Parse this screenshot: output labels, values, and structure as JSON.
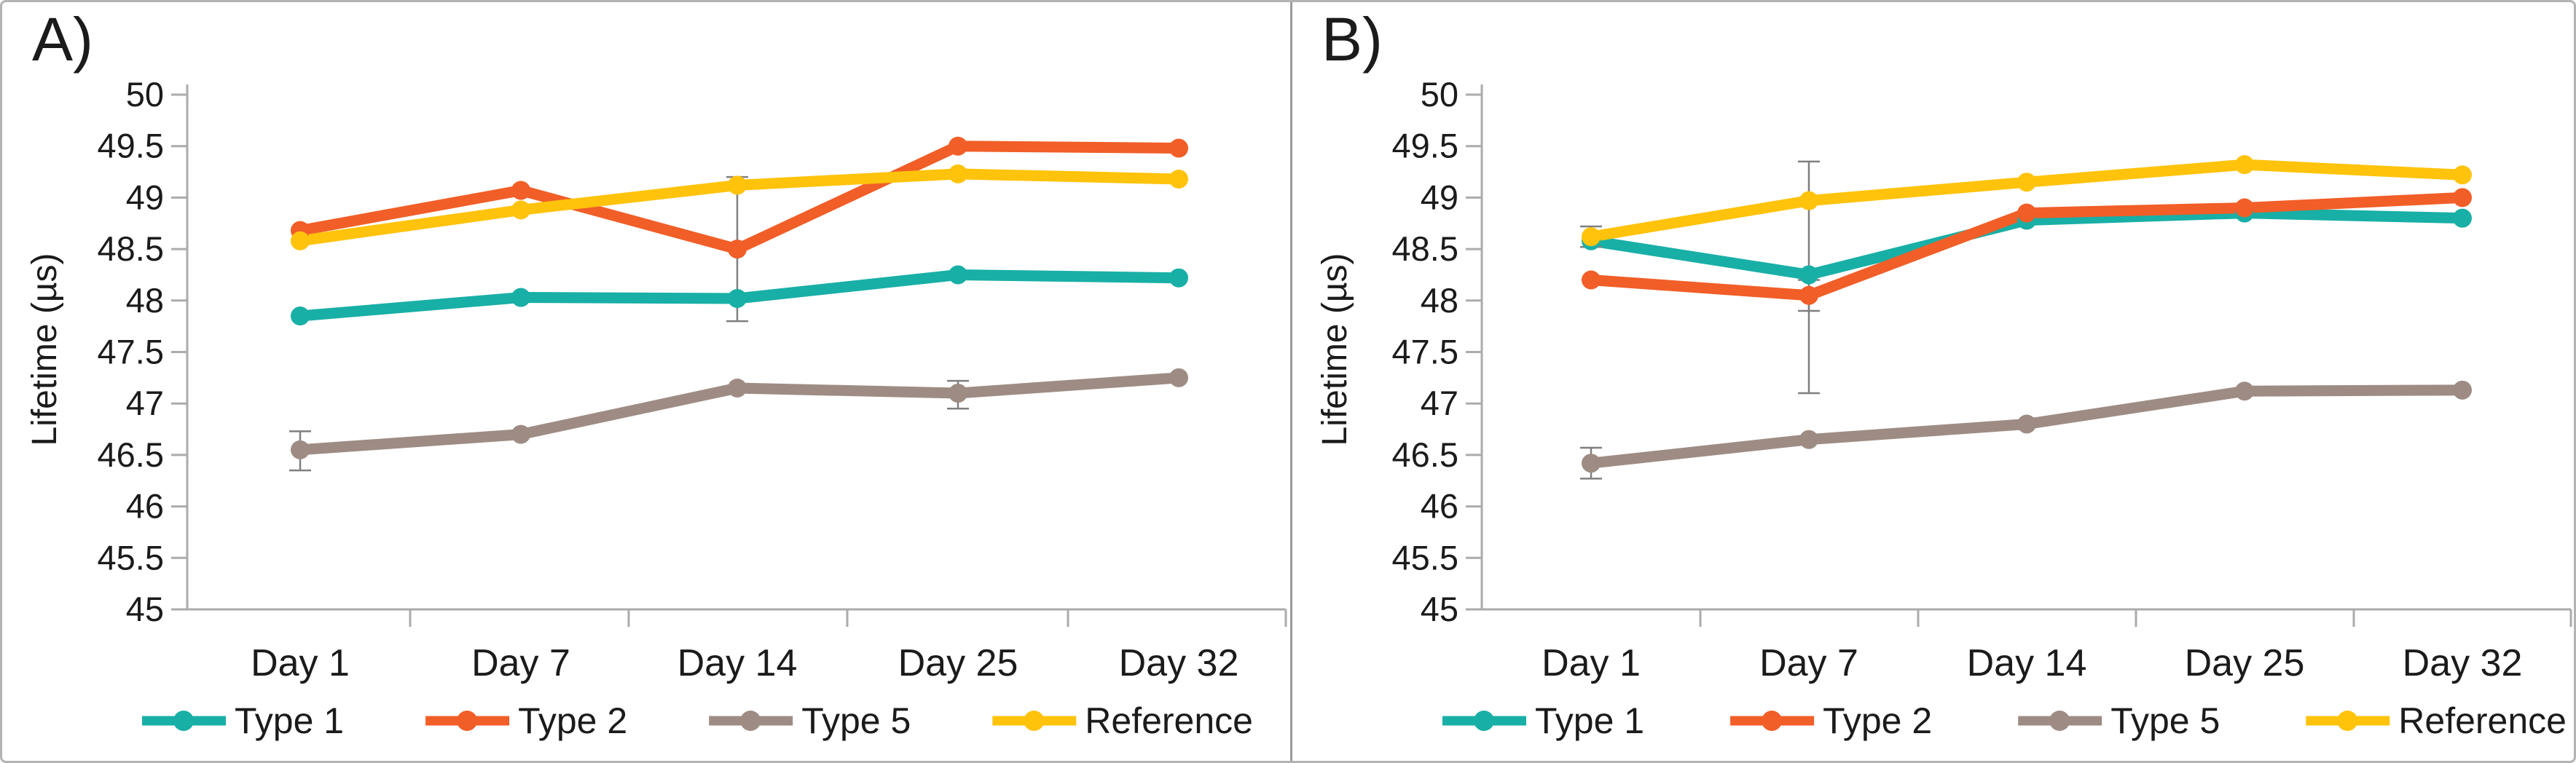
{
  "figure": {
    "background": "#ffffff",
    "border_color": "#b3b3b3",
    "divider_color": "#9b9b9b",
    "text_color": "#1b1b1b",
    "axis_color": "#ababab",
    "error_bar_color": "#7f7f7f"
  },
  "chart_data": [
    {
      "type": "line",
      "panel_label": "A)",
      "ylabel": "Lifetime (µs)",
      "xlabel": "",
      "ylim": [
        45,
        50
      ],
      "ytick_step": 0.5,
      "grid": false,
      "legend_position": "bottom",
      "categories": [
        "Day 1",
        "Day 7",
        "Day 14",
        "Day 25",
        "Day 32"
      ],
      "series": [
        {
          "name": "Type 1",
          "color": "#18afa6",
          "values": [
            47.85,
            48.03,
            48.02,
            48.25,
            48.22
          ],
          "error_bars": [
            null,
            null,
            null,
            null,
            null
          ]
        },
        {
          "name": "Type 2",
          "color": "#f15e27",
          "values": [
            48.68,
            49.07,
            48.5,
            49.5,
            49.48
          ],
          "error_bars": [
            null,
            null,
            {
              "plus": 0.7,
              "minus": 0.7
            },
            null,
            null
          ]
        },
        {
          "name": "Type 5",
          "color": "#9e8c84",
          "values": [
            46.55,
            46.7,
            47.15,
            47.1,
            47.25
          ],
          "error_bars": [
            {
              "plus": 0.18,
              "minus": 0.2
            },
            null,
            null,
            {
              "plus": 0.12,
              "minus": 0.15
            },
            null
          ]
        },
        {
          "name": "Reference",
          "color": "#ffc30b",
          "values": [
            48.58,
            48.88,
            49.12,
            49.23,
            49.18
          ],
          "error_bars": [
            null,
            null,
            null,
            null,
            null
          ]
        }
      ]
    },
    {
      "type": "line",
      "panel_label": "B)",
      "ylabel": "Lifetime (µs)",
      "xlabel": "",
      "ylim": [
        45,
        50
      ],
      "ytick_step": 0.5,
      "grid": false,
      "legend_position": "bottom",
      "categories": [
        "Day 1",
        "Day 7",
        "Day 14",
        "Day 25",
        "Day 32"
      ],
      "series": [
        {
          "name": "Type 1",
          "color": "#18afa6",
          "values": [
            48.58,
            48.25,
            48.78,
            48.85,
            48.8
          ],
          "error_bars": [
            null,
            {
              "plus": 1.1,
              "minus": 1.15
            },
            null,
            null,
            null
          ]
        },
        {
          "name": "Type 2",
          "color": "#f15e27",
          "values": [
            48.2,
            48.05,
            48.85,
            48.9,
            49.0
          ],
          "error_bars": [
            null,
            {
              "plus": 0.15,
              "minus": 0.15
            },
            null,
            null,
            null
          ]
        },
        {
          "name": "Type 5",
          "color": "#9e8c84",
          "values": [
            46.42,
            46.65,
            46.8,
            47.12,
            47.13
          ],
          "error_bars": [
            {
              "plus": 0.15,
              "minus": 0.15
            },
            null,
            null,
            null,
            null
          ]
        },
        {
          "name": "Reference",
          "color": "#ffc30b",
          "values": [
            48.62,
            48.97,
            49.15,
            49.32,
            49.22
          ],
          "error_bars": [
            {
              "plus": 0.1,
              "minus": 0.1
            },
            null,
            null,
            null,
            null
          ]
        }
      ]
    }
  ]
}
